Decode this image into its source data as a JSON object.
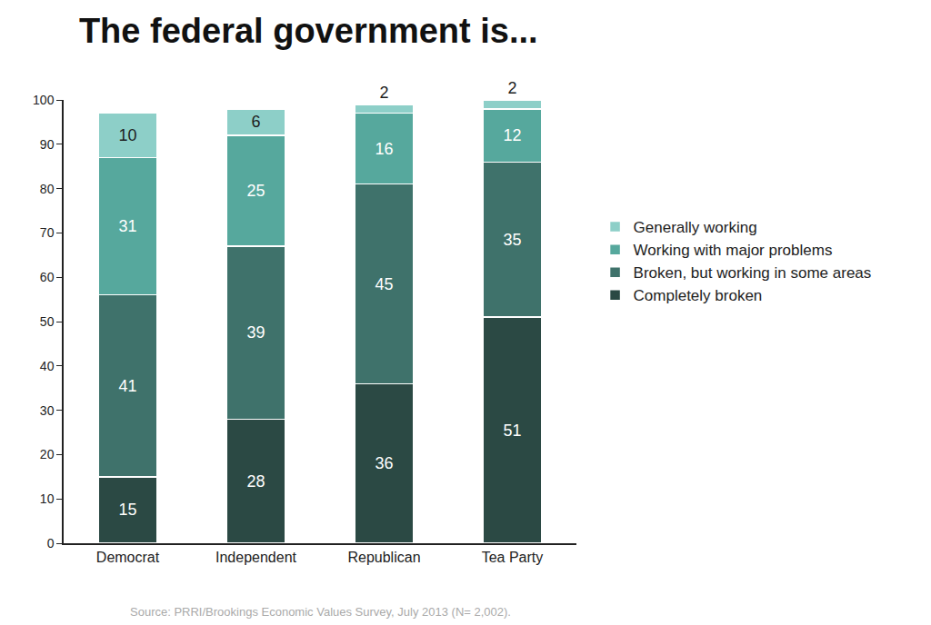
{
  "chart_data": {
    "type": "bar",
    "title": "The federal government is...",
    "annotations": [
      "Source: PRRI/Brookings Economic Values Survey, July 2013 (N= 2,002)."
    ],
    "categories": [
      "Democrat",
      "Independent",
      "Republican",
      "Tea Party"
    ],
    "stacked": true,
    "data_labels": true,
    "grid": false,
    "legend": "right",
    "ylim": [
      0,
      100
    ],
    "yticks": [
      0,
      10,
      20,
      30,
      40,
      50,
      60,
      70,
      80,
      90,
      100
    ],
    "series": [
      {
        "name": "Completely broken",
        "color": "#2b4944",
        "values": [
          15,
          28,
          36,
          51
        ]
      },
      {
        "name": "Broken, but working in some areas",
        "color": "#3f726b",
        "values": [
          41,
          39,
          45,
          35
        ]
      },
      {
        "name": "Working with major problems",
        "color": "#56a89d",
        "values": [
          31,
          25,
          16,
          12
        ]
      },
      {
        "name": "Generally working",
        "color": "#8dcfc8",
        "values": [
          10,
          6,
          2,
          2
        ]
      }
    ]
  }
}
